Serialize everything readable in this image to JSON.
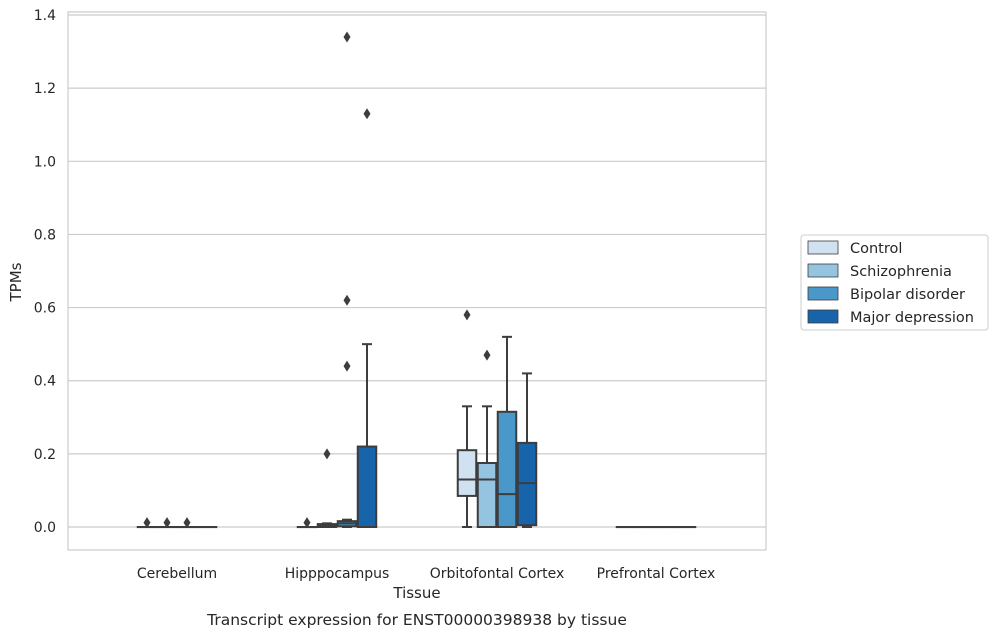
{
  "chart_data": {
    "type": "box",
    "caption": "Transcript expression for ENST00000398938 by tissue",
    "xlabel": "Tissue",
    "ylabel": "TPMs",
    "ylim": [
      -0.06,
      1.41
    ],
    "yticks": [
      "0.0",
      "0.2",
      "0.4",
      "0.6",
      "0.8",
      "1.0",
      "1.2",
      "1.4"
    ],
    "grid": "horizontal",
    "legend_position": "right",
    "categories": [
      "Cerebellum",
      "Hipppocampus",
      "Orbitofontal Cortex",
      "Prefrontal Cortex"
    ],
    "series": [
      {
        "name": "Control",
        "color": "#d0e1f2",
        "boxes": [
          {
            "q1": 0,
            "median": 0,
            "q3": 0,
            "whisker_low": 0,
            "whisker_high": 0,
            "outliers": [
              0.012
            ]
          },
          {
            "q1": 0,
            "median": 0,
            "q3": 0,
            "whisker_low": 0,
            "whisker_high": 0,
            "outliers": [
              0.012
            ]
          },
          {
            "q1": 0.085,
            "median": 0.13,
            "q3": 0.21,
            "whisker_low": 0.0,
            "whisker_high": 0.33,
            "outliers": [
              0.58
            ]
          },
          {
            "q1": 0,
            "median": 0,
            "q3": 0,
            "whisker_low": 0,
            "whisker_high": 0,
            "outliers": []
          }
        ]
      },
      {
        "name": "Schizophrenia",
        "color": "#94c4df",
        "boxes": [
          {
            "q1": 0,
            "median": 0,
            "q3": 0,
            "whisker_low": 0,
            "whisker_high": 0,
            "outliers": [
              0.012
            ]
          },
          {
            "q1": 0,
            "median": 0.003,
            "q3": 0.008,
            "whisker_low": 0,
            "whisker_high": 0.01,
            "outliers": [
              0.2
            ]
          },
          {
            "q1": 0.0,
            "median": 0.13,
            "q3": 0.175,
            "whisker_low": 0.0,
            "whisker_high": 0.33,
            "outliers": [
              0.47
            ]
          },
          {
            "q1": 0,
            "median": 0,
            "q3": 0,
            "whisker_low": 0,
            "whisker_high": 0,
            "outliers": []
          }
        ]
      },
      {
        "name": "Bipolar disorder",
        "color": "#4a98c9",
        "boxes": [
          {
            "q1": 0,
            "median": 0,
            "q3": 0,
            "whisker_low": 0,
            "whisker_high": 0,
            "outliers": [
              0.012
            ]
          },
          {
            "q1": 0.002,
            "median": 0.01,
            "q3": 0.016,
            "whisker_low": 0,
            "whisker_high": 0.02,
            "outliers": [
              0.44,
              0.62,
              1.34
            ]
          },
          {
            "q1": 0.0,
            "median": 0.09,
            "q3": 0.315,
            "whisker_low": 0.0,
            "whisker_high": 0.52,
            "outliers": []
          },
          {
            "q1": 0,
            "median": 0,
            "q3": 0,
            "whisker_low": 0,
            "whisker_high": 0,
            "outliers": []
          }
        ]
      },
      {
        "name": "Major depression",
        "color": "#1764ab",
        "boxes": [
          {
            "q1": 0,
            "median": 0,
            "q3": 0,
            "whisker_low": 0,
            "whisker_high": 0,
            "outliers": []
          },
          {
            "q1": 0.0,
            "median": 0.0,
            "q3": 0.22,
            "whisker_low": 0.0,
            "whisker_high": 0.5,
            "outliers": [
              1.13
            ]
          },
          {
            "q1": 0.005,
            "median": 0.12,
            "q3": 0.23,
            "whisker_low": 0.0,
            "whisker_high": 0.42,
            "outliers": []
          },
          {
            "q1": 0,
            "median": 0,
            "q3": 0,
            "whisker_low": 0,
            "whisker_high": 0,
            "outliers": []
          }
        ]
      }
    ]
  }
}
